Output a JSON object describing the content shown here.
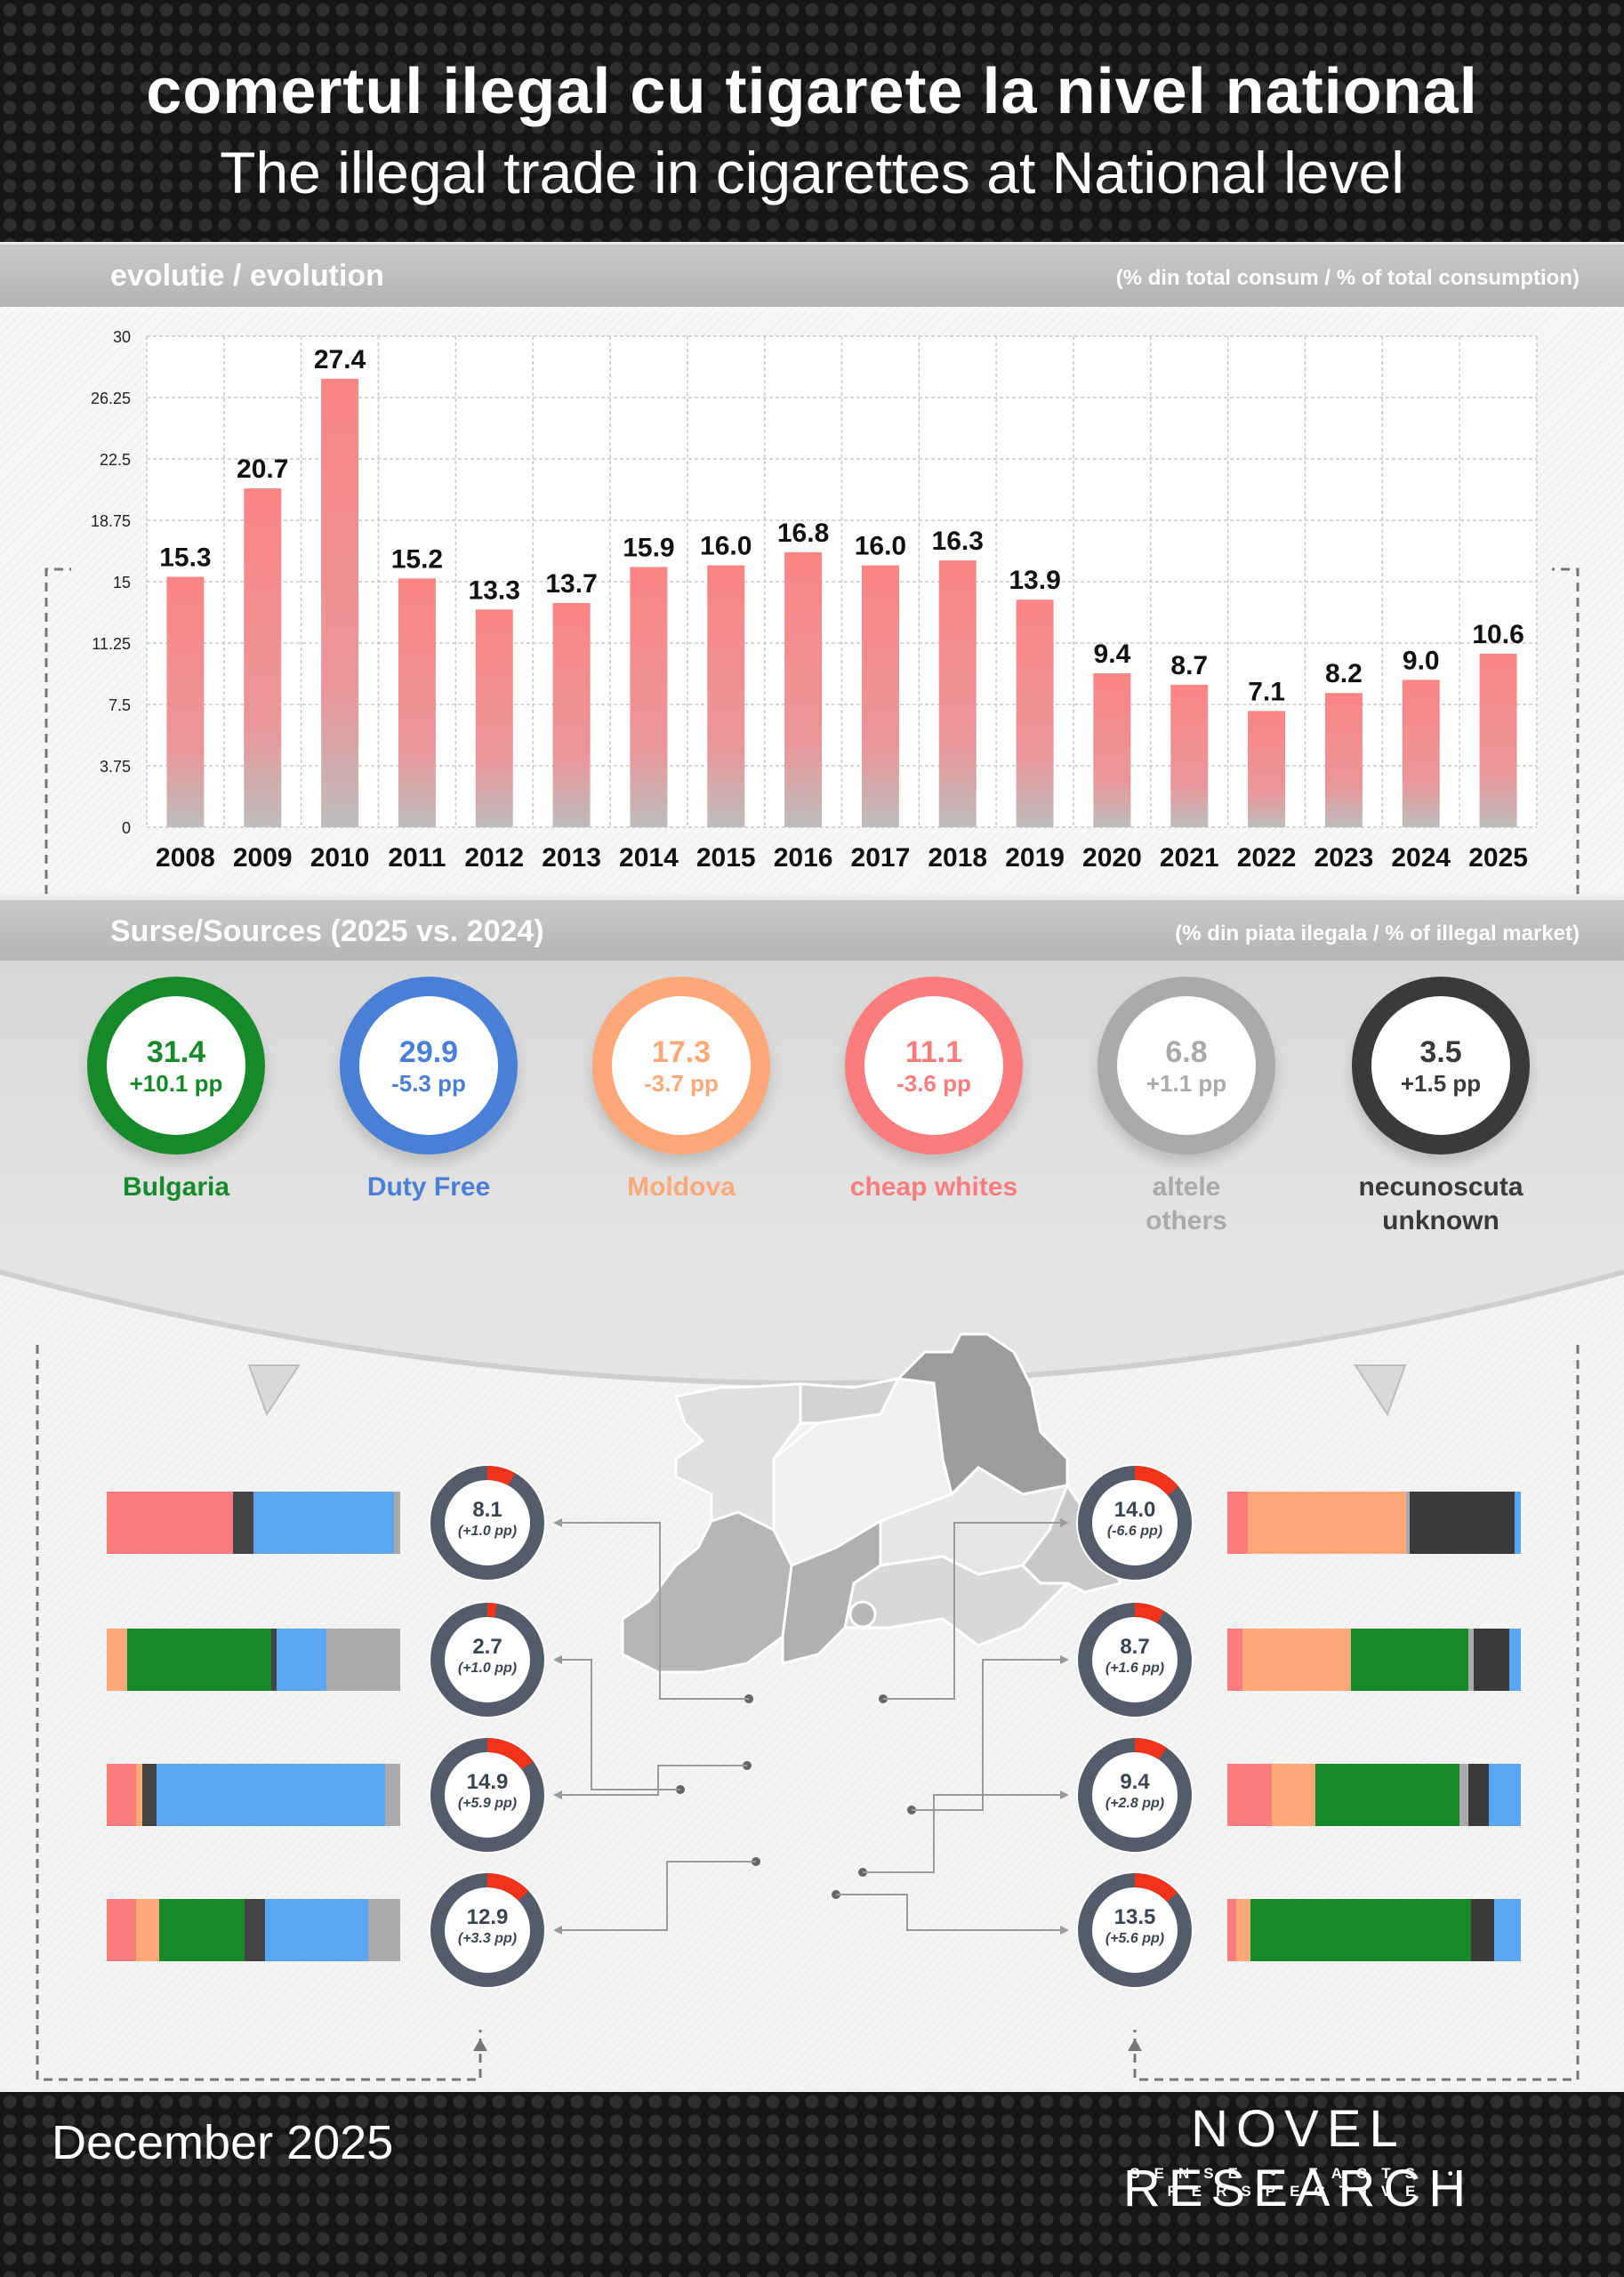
{
  "header": {
    "title_ro": "comertul ilegal cu tigarete la nivel national",
    "title_en": "The illegal trade in cigarettes at National level"
  },
  "evolution": {
    "label": "evolutie / evolution",
    "unit": "(% din total consum / % of total consumption)"
  },
  "sources_header": {
    "label": "Surse/Sources (2025 vs. 2024)",
    "unit": "(% din piata ilegala / % of illegal market)"
  },
  "chart_data": {
    "type": "bar",
    "categories": [
      "2008",
      "2009",
      "2010",
      "2011",
      "2012",
      "2013",
      "2014",
      "2015",
      "2016",
      "2017",
      "2018",
      "2019",
      "2020",
      "2021",
      "2022",
      "2023",
      "2024",
      "2025"
    ],
    "values": [
      15.3,
      20.7,
      27.4,
      15.2,
      13.3,
      13.7,
      15.9,
      16.0,
      16.8,
      16.0,
      16.3,
      13.9,
      9.4,
      8.7,
      7.1,
      8.2,
      9.0,
      10.6
    ],
    "value_labels": [
      "15.3",
      "20.7",
      "27.4",
      "15.2",
      "13.3",
      "13.7",
      "15.9",
      "16.0",
      "16.8",
      "16.0",
      "16.3",
      "13.9",
      "9.4",
      "8.7",
      "7.1",
      "8.2",
      "9.0",
      "10.6"
    ],
    "ylim": [
      0,
      30
    ],
    "yticks": [
      "0",
      "3.75",
      "7.5",
      "11.25",
      "15",
      "18.75",
      "22.5",
      "26.25",
      "30"
    ],
    "grid": true,
    "bar_color_top": "#fb8585",
    "bar_color_bottom": "#bdbdbd"
  },
  "sources": [
    {
      "value": "31.4",
      "delta": "+10.1 pp",
      "label_lines": [
        "Bulgaria"
      ],
      "color": "#168a2a"
    },
    {
      "value": "29.9",
      "delta": "-5.3 pp",
      "label_lines": [
        "Duty Free"
      ],
      "color": "#4a7fd6"
    },
    {
      "value": "17.3",
      "delta": "-3.7 pp",
      "label_lines": [
        "Moldova"
      ],
      "color": "#fca878"
    },
    {
      "value": "11.1",
      "delta": "-3.6 pp",
      "label_lines": [
        "cheap whites"
      ],
      "color": "#fb7c7c"
    },
    {
      "value": "6.8",
      "delta": "+1.1 pp",
      "label_lines": [
        "altele",
        "others"
      ],
      "color": "#aaaaaa"
    },
    {
      "value": "3.5",
      "delta": "+1.5 pp",
      "label_lines": [
        "necunoscuta",
        "unknown"
      ],
      "color": "#3a3a3a"
    }
  ],
  "regions_left": [
    {
      "value": "8.1",
      "delta": "(+1.0 pp)",
      "share": 0.081,
      "mix": [
        {
          "c": "#fb7c7c",
          "p": 43
        },
        {
          "c": "#444",
          "p": 7
        },
        {
          "c": "#5aa6f2",
          "p": 48
        },
        {
          "c": "#aaaaaa",
          "p": 2
        }
      ]
    },
    {
      "value": "2.7",
      "delta": "(+1.0 pp)",
      "share": 0.027,
      "mix": [
        {
          "c": "#fca878",
          "p": 7
        },
        {
          "c": "#168a2a",
          "p": 49
        },
        {
          "c": "#444",
          "p": 2
        },
        {
          "c": "#5aa6f2",
          "p": 17
        },
        {
          "c": "#aaaaaa",
          "p": 25
        }
      ]
    },
    {
      "value": "14.9",
      "delta": "(+5.9 pp)",
      "share": 0.149,
      "mix": [
        {
          "c": "#fb7c7c",
          "p": 10
        },
        {
          "c": "#fca878",
          "p": 2
        },
        {
          "c": "#444",
          "p": 5
        },
        {
          "c": "#5aa6f2",
          "p": 78
        },
        {
          "c": "#aaaaaa",
          "p": 5
        }
      ]
    },
    {
      "value": "12.9",
      "delta": "(+3.3 pp)",
      "share": 0.129,
      "mix": [
        {
          "c": "#fb7c7c",
          "p": 10
        },
        {
          "c": "#fca878",
          "p": 8
        },
        {
          "c": "#168a2a",
          "p": 29
        },
        {
          "c": "#444",
          "p": 7
        },
        {
          "c": "#5aa6f2",
          "p": 35
        },
        {
          "c": "#aaaaaa",
          "p": 11
        }
      ]
    }
  ],
  "regions_right": [
    {
      "value": "14.0",
      "delta": "(-6.6 pp)",
      "share": 0.14,
      "mix": [
        {
          "c": "#fb7c7c",
          "p": 7
        },
        {
          "c": "#fca878",
          "p": 54
        },
        {
          "c": "#aaaaaa",
          "p": 1
        },
        {
          "c": "#3a3a3a",
          "p": 36
        },
        {
          "c": "#5aa6f2",
          "p": 2
        }
      ]
    },
    {
      "value": "8.7",
      "delta": "(+1.6 pp)",
      "share": 0.087,
      "mix": [
        {
          "c": "#fb7c7c",
          "p": 5
        },
        {
          "c": "#fca878",
          "p": 37
        },
        {
          "c": "#168a2a",
          "p": 40
        },
        {
          "c": "#aaaaaa",
          "p": 2
        },
        {
          "c": "#3a3a3a",
          "p": 12
        },
        {
          "c": "#5aa6f2",
          "p": 4
        }
      ]
    },
    {
      "value": "9.4",
      "delta": "(+2.8 pp)",
      "share": 0.094,
      "mix": [
        {
          "c": "#fb7c7c",
          "p": 15
        },
        {
          "c": "#fca878",
          "p": 15
        },
        {
          "c": "#168a2a",
          "p": 49
        },
        {
          "c": "#aaaaaa",
          "p": 3
        },
        {
          "c": "#3a3a3a",
          "p": 7
        },
        {
          "c": "#5aa6f2",
          "p": 11
        }
      ]
    },
    {
      "value": "13.5",
      "delta": "(+5.6 pp)",
      "share": 0.135,
      "mix": [
        {
          "c": "#fb7c7c",
          "p": 3
        },
        {
          "c": "#fca878",
          "p": 5
        },
        {
          "c": "#168a2a",
          "p": 75
        },
        {
          "c": "#3a3a3a",
          "p": 8
        },
        {
          "c": "#5aa6f2",
          "p": 9
        }
      ]
    }
  ],
  "footer": {
    "date": "December 2025",
    "brand": "NOVEL RESEARCH",
    "tagline": "SENSE • FACTS • PERSPECTIVE"
  }
}
